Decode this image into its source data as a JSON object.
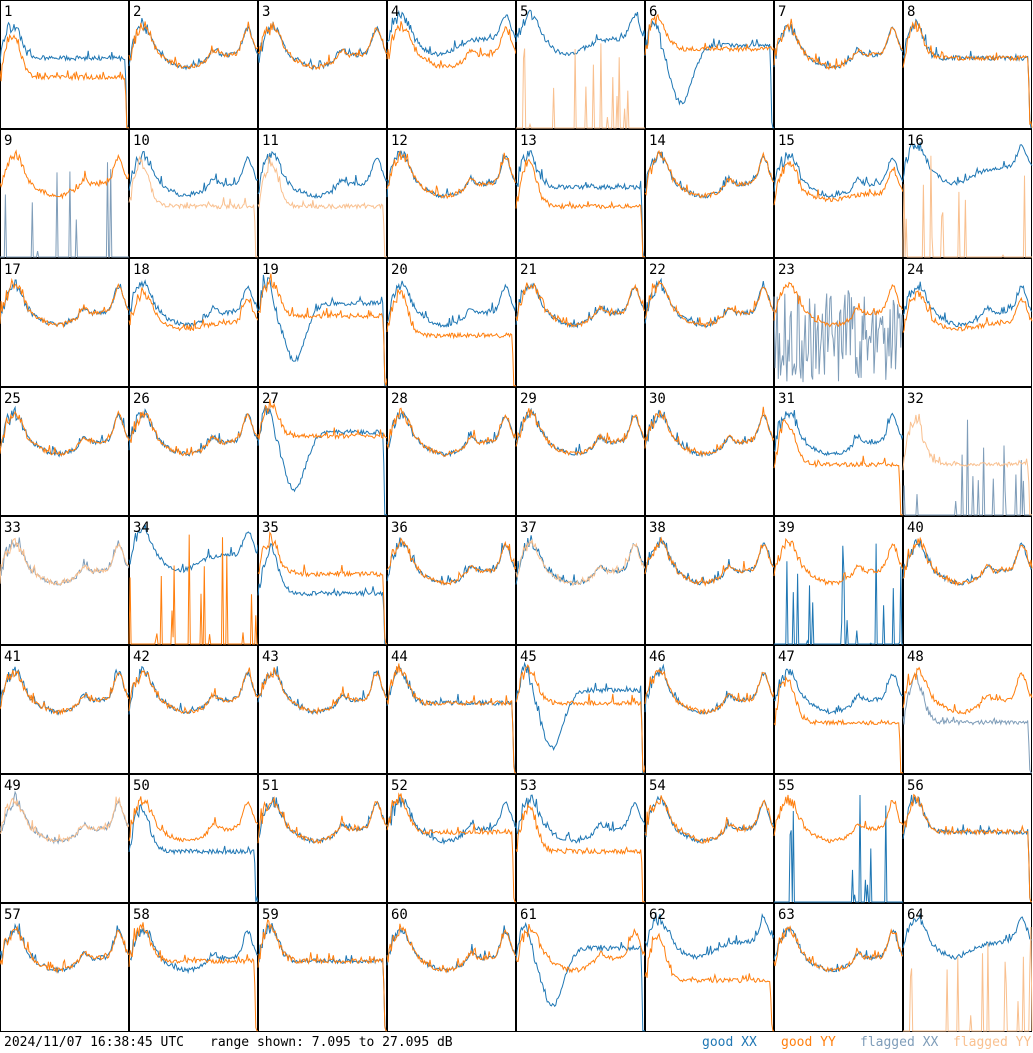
{
  "footer": {
    "timestamp": "2024/11/07 16:38:45 UTC",
    "range_text": "range shown: 7.095 to 27.095 dB"
  },
  "legend": {
    "good_xx": "good XX",
    "good_yy": "good YY",
    "flagged_xx": "flagged XX",
    "flagged_yy": "flagged YY"
  },
  "colors": {
    "good_xx": "#1f77b4",
    "good_yy": "#ff7f0e",
    "flagged_xx": "#7f9db9",
    "flagged_yy": "#f9c08f"
  },
  "chart_data": {
    "type": "line",
    "layout": "8x8 small multiples",
    "ylim_db": [
      7.095,
      27.095
    ],
    "tiles": [
      {
        "label": "1",
        "xx": "good",
        "yy": "good",
        "xx_shape": "flat",
        "yy_shape": "flat_low"
      },
      {
        "label": "2",
        "xx": "good",
        "yy": "good",
        "xx_shape": "bath",
        "yy_shape": "bath"
      },
      {
        "label": "3",
        "xx": "good",
        "yy": "good",
        "xx_shape": "bath",
        "yy_shape": "bath"
      },
      {
        "label": "4",
        "xx": "good",
        "yy": "good",
        "xx_shape": "bath_high",
        "yy_shape": "bath"
      },
      {
        "label": "5",
        "xx": "good",
        "yy": "flagged",
        "xx_shape": "bath_high",
        "yy_shape": "spikes_low"
      },
      {
        "label": "6",
        "xx": "good",
        "yy": "good",
        "xx_shape": "dip",
        "yy_shape": "flat_high"
      },
      {
        "label": "7",
        "xx": "good",
        "yy": "good",
        "xx_shape": "bath",
        "yy_shape": "bath"
      },
      {
        "label": "8",
        "xx": "good",
        "yy": "good",
        "xx_shape": "flat",
        "yy_shape": "flat"
      },
      {
        "label": "9",
        "xx": "flagged",
        "yy": "good",
        "xx_shape": "spikes_low",
        "yy_shape": "bath"
      },
      {
        "label": "10",
        "xx": "good",
        "yy": "flagged",
        "xx_shape": "bath",
        "yy_shape": "flat_low"
      },
      {
        "label": "11",
        "xx": "good",
        "yy": "flagged",
        "xx_shape": "bath",
        "yy_shape": "flat_low"
      },
      {
        "label": "12",
        "xx": "good",
        "yy": "good",
        "xx_shape": "bath",
        "yy_shape": "bath"
      },
      {
        "label": "13",
        "xx": "good",
        "yy": "good",
        "xx_shape": "flat",
        "yy_shape": "flat_low"
      },
      {
        "label": "14",
        "xx": "good",
        "yy": "good",
        "xx_shape": "bath",
        "yy_shape": "bath"
      },
      {
        "label": "15",
        "xx": "good",
        "yy": "good",
        "xx_shape": "bath",
        "yy_shape": "bath_low"
      },
      {
        "label": "16",
        "xx": "good",
        "yy": "flagged",
        "xx_shape": "bath_high",
        "yy_shape": "spikes_low"
      },
      {
        "label": "17",
        "xx": "good",
        "yy": "good",
        "xx_shape": "bath",
        "yy_shape": "bath"
      },
      {
        "label": "18",
        "xx": "good",
        "yy": "good",
        "xx_shape": "bath",
        "yy_shape": "bath_low"
      },
      {
        "label": "19",
        "xx": "good",
        "yy": "good",
        "xx_shape": "dip",
        "yy_shape": "flat"
      },
      {
        "label": "20",
        "xx": "good",
        "yy": "good",
        "xx_shape": "bath",
        "yy_shape": "flat_low"
      },
      {
        "label": "21",
        "xx": "good",
        "yy": "good",
        "xx_shape": "bath",
        "yy_shape": "bath"
      },
      {
        "label": "22",
        "xx": "good",
        "yy": "good",
        "xx_shape": "bath",
        "yy_shape": "bath"
      },
      {
        "label": "23",
        "xx": "flagged",
        "yy": "good",
        "xx_shape": "noise",
        "yy_shape": "bath"
      },
      {
        "label": "24",
        "xx": "good",
        "yy": "good",
        "xx_shape": "bath",
        "yy_shape": "bath_low"
      },
      {
        "label": "25",
        "xx": "good",
        "yy": "good",
        "xx_shape": "bath",
        "yy_shape": "bath"
      },
      {
        "label": "26",
        "xx": "good",
        "yy": "good",
        "xx_shape": "bath",
        "yy_shape": "bath"
      },
      {
        "label": "27",
        "xx": "good",
        "yy": "good",
        "xx_shape": "dip",
        "yy_shape": "flat_high"
      },
      {
        "label": "28",
        "xx": "good",
        "yy": "good",
        "xx_shape": "bath",
        "yy_shape": "bath"
      },
      {
        "label": "29",
        "xx": "good",
        "yy": "good",
        "xx_shape": "bath",
        "yy_shape": "bath"
      },
      {
        "label": "30",
        "xx": "good",
        "yy": "good",
        "xx_shape": "bath",
        "yy_shape": "bath"
      },
      {
        "label": "31",
        "xx": "good",
        "yy": "good",
        "xx_shape": "bath",
        "yy_shape": "flat_low"
      },
      {
        "label": "32",
        "xx": "flagged",
        "yy": "flagged",
        "xx_shape": "spikes_low",
        "yy_shape": "flat_low"
      },
      {
        "label": "33",
        "xx": "flagged",
        "yy": "flagged",
        "xx_shape": "bath",
        "yy_shape": "bath"
      },
      {
        "label": "34",
        "xx": "good",
        "yy": "good",
        "xx_shape": "bath_high",
        "yy_shape": "spikes_low"
      },
      {
        "label": "35",
        "xx": "good",
        "yy": "good",
        "xx_shape": "flat_low",
        "yy_shape": "flat"
      },
      {
        "label": "36",
        "xx": "good",
        "yy": "good",
        "xx_shape": "bath",
        "yy_shape": "bath"
      },
      {
        "label": "37",
        "xx": "good",
        "yy": "flagged",
        "xx_shape": "bath",
        "yy_shape": "bath"
      },
      {
        "label": "38",
        "xx": "good",
        "yy": "good",
        "xx_shape": "bath",
        "yy_shape": "bath"
      },
      {
        "label": "39",
        "xx": "good",
        "yy": "good",
        "xx_shape": "spikes_low",
        "yy_shape": "bath"
      },
      {
        "label": "40",
        "xx": "good",
        "yy": "good",
        "xx_shape": "bath",
        "yy_shape": "bath"
      },
      {
        "label": "41",
        "xx": "good",
        "yy": "good",
        "xx_shape": "bath",
        "yy_shape": "bath"
      },
      {
        "label": "42",
        "xx": "good",
        "yy": "good",
        "xx_shape": "bath",
        "yy_shape": "bath"
      },
      {
        "label": "43",
        "xx": "good",
        "yy": "good",
        "xx_shape": "bath",
        "yy_shape": "bath"
      },
      {
        "label": "44",
        "xx": "good",
        "yy": "good",
        "xx_shape": "flat",
        "yy_shape": "flat"
      },
      {
        "label": "45",
        "xx": "good",
        "yy": "good",
        "xx_shape": "dip",
        "yy_shape": "flat"
      },
      {
        "label": "46",
        "xx": "good",
        "yy": "good",
        "xx_shape": "bath",
        "yy_shape": "bath"
      },
      {
        "label": "47",
        "xx": "good",
        "yy": "good",
        "xx_shape": "bath",
        "yy_shape": "flat_low"
      },
      {
        "label": "48",
        "xx": "flagged",
        "yy": "good",
        "xx_shape": "flat_low",
        "yy_shape": "bath"
      },
      {
        "label": "49",
        "xx": "flagged",
        "yy": "flagged",
        "xx_shape": "bath",
        "yy_shape": "bath"
      },
      {
        "label": "50",
        "xx": "good",
        "yy": "good",
        "xx_shape": "flat_low",
        "yy_shape": "bath"
      },
      {
        "label": "51",
        "xx": "good",
        "yy": "good",
        "xx_shape": "bath",
        "yy_shape": "bath"
      },
      {
        "label": "52",
        "xx": "good",
        "yy": "good",
        "xx_shape": "bath",
        "yy_shape": "flat"
      },
      {
        "label": "53",
        "xx": "good",
        "yy": "good",
        "xx_shape": "bath",
        "yy_shape": "flat_low"
      },
      {
        "label": "54",
        "xx": "good",
        "yy": "good",
        "xx_shape": "bath",
        "yy_shape": "bath"
      },
      {
        "label": "55",
        "xx": "good",
        "yy": "good",
        "xx_shape": "spikes_low",
        "yy_shape": "bath"
      },
      {
        "label": "56",
        "xx": "good",
        "yy": "good",
        "xx_shape": "flat",
        "yy_shape": "flat"
      },
      {
        "label": "57",
        "xx": "good",
        "yy": "good",
        "xx_shape": "bath",
        "yy_shape": "bath"
      },
      {
        "label": "58",
        "xx": "good",
        "yy": "good",
        "xx_shape": "bath",
        "yy_shape": "flat"
      },
      {
        "label": "59",
        "xx": "good",
        "yy": "good",
        "xx_shape": "flat",
        "yy_shape": "flat"
      },
      {
        "label": "60",
        "xx": "good",
        "yy": "good",
        "xx_shape": "bath",
        "yy_shape": "bath"
      },
      {
        "label": "61",
        "xx": "good",
        "yy": "good",
        "xx_shape": "dip",
        "yy_shape": "bath"
      },
      {
        "label": "62",
        "xx": "good",
        "yy": "good",
        "xx_shape": "bath_high",
        "yy_shape": "flat_low"
      },
      {
        "label": "63",
        "xx": "good",
        "yy": "good",
        "xx_shape": "bath",
        "yy_shape": "bath"
      },
      {
        "label": "64",
        "xx": "good",
        "yy": "flagged",
        "xx_shape": "bath_high",
        "yy_shape": "spikes_low"
      }
    ]
  }
}
